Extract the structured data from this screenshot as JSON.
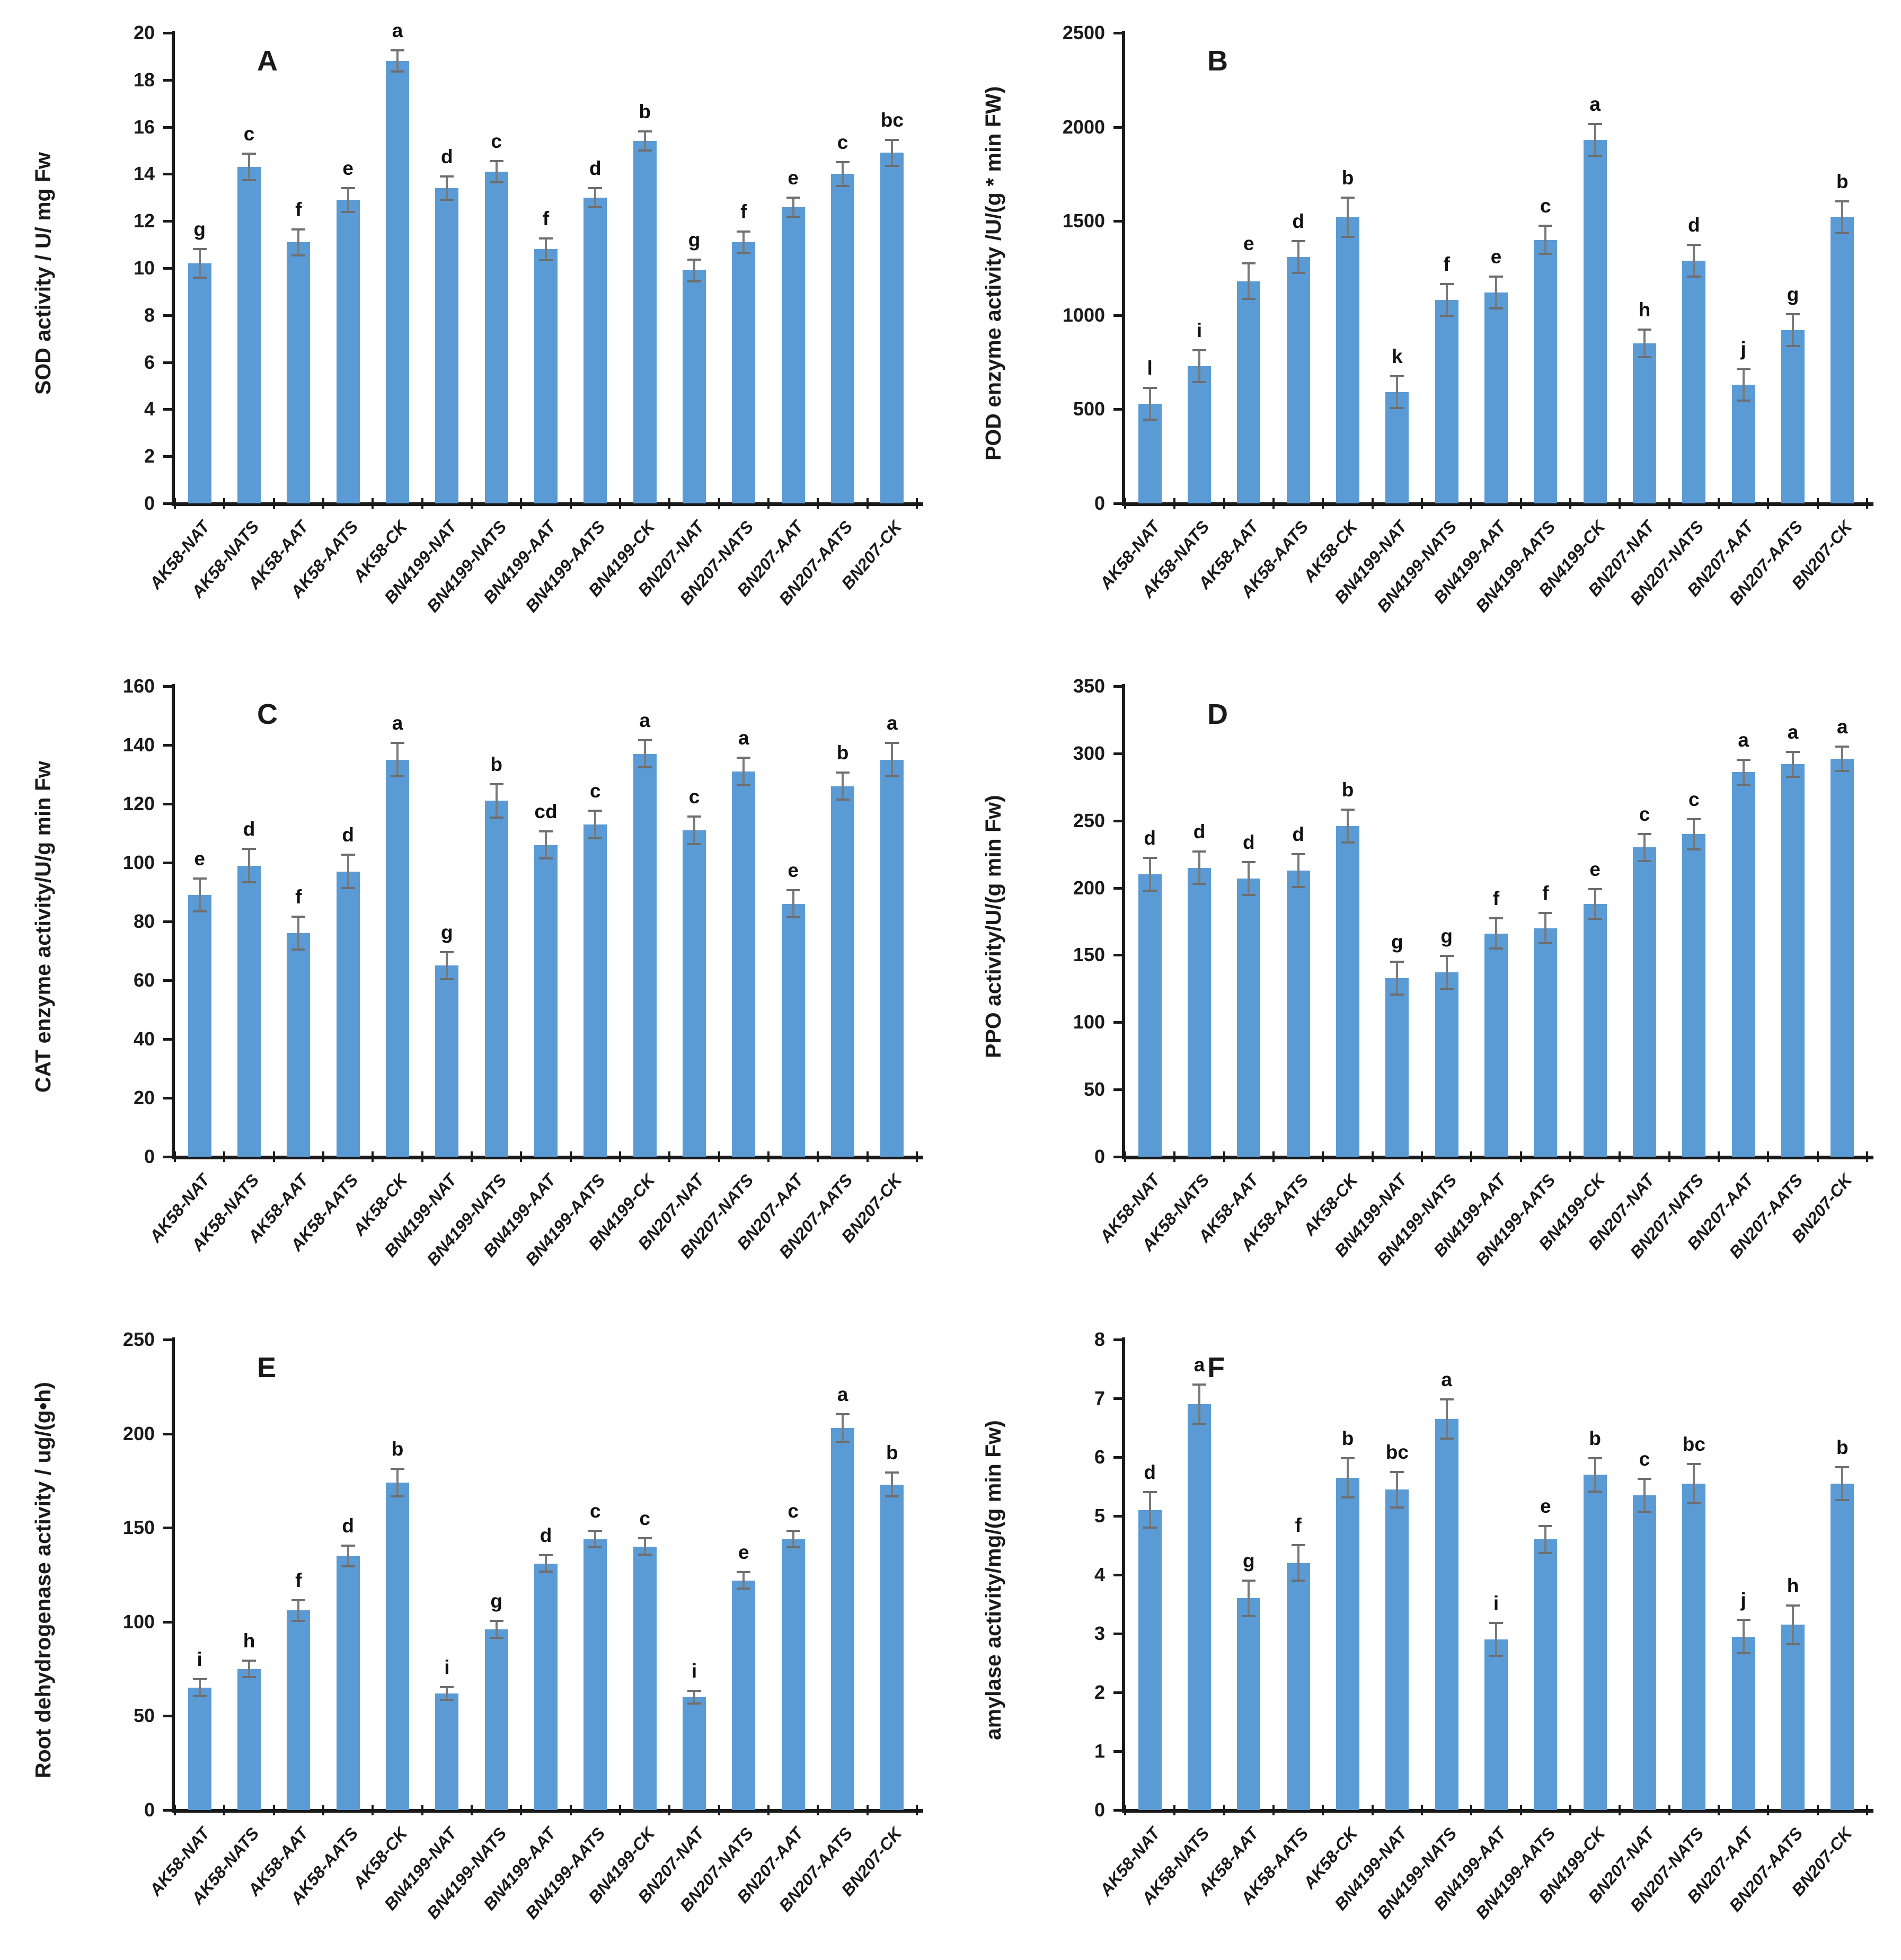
{
  "figure": {
    "background": "#ffffff",
    "bar_color": "#5b9bd5",
    "error_bar_color": "#7a7a7a",
    "text_color": "#1a1a1a"
  },
  "categories": [
    "AK58-NAT",
    "AK58-NATS",
    "AK58-AAT",
    "AK58-AATS",
    "AK58-CK",
    "BN4199-NAT",
    "BN4199-NATS",
    "BN4199-AAT",
    "BN4199-AATS",
    "BN4199-CK",
    "BN207-NAT",
    "BN207-NATS",
    "BN207-AAT",
    "BN207-AATS",
    "BN207-CK"
  ],
  "chart_data": [
    {
      "type": "bar",
      "panel": "A",
      "ylabel": "SOD activity / U/ mg Fw",
      "xlabel": "",
      "ylim": [
        0,
        20
      ],
      "ystep": 2,
      "grid": false,
      "legend": "none",
      "categories": [
        "AK58-NAT",
        "AK58-NATS",
        "AK58-AAT",
        "AK58-AATS",
        "AK58-CK",
        "BN4199-NAT",
        "BN4199-NATS",
        "BN4199-AAT",
        "BN4199-AATS",
        "BN4199-CK",
        "BN207-NAT",
        "BN207-NATS",
        "BN207-AAT",
        "BN207-AATS",
        "BN207-CK"
      ],
      "values": [
        10.2,
        14.3,
        11.1,
        12.9,
        18.8,
        13.4,
        14.1,
        10.8,
        13.0,
        15.4,
        9.9,
        11.1,
        12.6,
        14.0,
        14.9
      ],
      "errors": [
        0.65,
        0.6,
        0.6,
        0.55,
        0.5,
        0.55,
        0.5,
        0.5,
        0.45,
        0.45,
        0.5,
        0.5,
        0.45,
        0.55,
        0.6
      ],
      "sig_letters": [
        "g",
        "c",
        "f",
        "e",
        "a",
        "d",
        "c",
        "f",
        "d",
        "b",
        "g",
        "f",
        "e",
        "c",
        "bc"
      ]
    },
    {
      "type": "bar",
      "panel": "B",
      "ylabel": "POD enzyme activity /U/(g * min FW)",
      "xlabel": "",
      "ylim": [
        0,
        2500
      ],
      "ystep": 500,
      "grid": false,
      "legend": "none",
      "categories": [
        "AK58-NAT",
        "AK58-NATS",
        "AK58-AAT",
        "AK58-AATS",
        "AK58-CK",
        "BN4199-NAT",
        "BN4199-NATS",
        "BN4199-AAT",
        "BN4199-AATS",
        "BN4199-CK",
        "BN207-NAT",
        "BN207-NATS",
        "BN207-AAT",
        "BN207-AATS",
        "BN207-CK"
      ],
      "values": [
        530,
        730,
        1180,
        1310,
        1520,
        590,
        1080,
        1120,
        1400,
        1930,
        850,
        1290,
        630,
        920,
        1520
      ],
      "errors": [
        90,
        90,
        100,
        90,
        110,
        90,
        90,
        90,
        80,
        90,
        80,
        90,
        90,
        90,
        90
      ],
      "sig_letters": [
        "l",
        "i",
        "e",
        "d",
        "b",
        "k",
        "f",
        "e",
        "c",
        "a",
        "h",
        "d",
        "j",
        "g",
        "b"
      ]
    },
    {
      "type": "bar",
      "panel": "C",
      "ylabel": "CAT enzyme activity/U/g min Fw",
      "xlabel": "",
      "ylim": [
        0,
        160
      ],
      "ystep": 20,
      "grid": false,
      "legend": "none",
      "categories": [
        "AK58-NAT",
        "AK58-NATS",
        "AK58-AAT",
        "AK58-AATS",
        "AK58-CK",
        "BN4199-NAT",
        "BN4199-NATS",
        "BN4199-AAT",
        "BN4199-AATS",
        "BN4199-CK",
        "BN207-NAT",
        "BN207-NATS",
        "BN207-AAT",
        "BN207-AATS",
        "BN207-CK"
      ],
      "values": [
        89,
        99,
        76,
        97,
        135,
        65,
        121,
        106,
        113,
        137,
        111,
        131,
        86,
        126,
        135
      ],
      "errors": [
        6,
        6,
        6,
        6,
        6,
        5,
        6,
        5,
        5,
        5,
        5,
        5,
        5,
        5,
        6
      ],
      "sig_letters": [
        "e",
        "d",
        "f",
        "d",
        "a",
        "g",
        "b",
        "cd",
        "c",
        "a",
        "c",
        "a",
        "e",
        "b",
        "a"
      ]
    },
    {
      "type": "bar",
      "panel": "D",
      "ylabel": "PPO activity/U/(g min Fw)",
      "xlabel": "",
      "ylim": [
        0,
        350
      ],
      "ystep": 50,
      "grid": false,
      "legend": "none",
      "categories": [
        "AK58-NAT",
        "AK58-NATS",
        "AK58-AAT",
        "AK58-AATS",
        "AK58-CK",
        "BN4199-NAT",
        "BN4199-NATS",
        "BN4199-AAT",
        "BN4199-AATS",
        "BN4199-CK",
        "BN207-NAT",
        "BN207-NATS",
        "BN207-AAT",
        "BN207-AATS",
        "BN207-CK"
      ],
      "values": [
        210,
        215,
        207,
        213,
        246,
        133,
        137,
        166,
        170,
        188,
        230,
        240,
        286,
        292,
        296
      ],
      "errors": [
        13,
        13,
        13,
        13,
        13,
        13,
        13,
        12,
        12,
        12,
        11,
        12,
        10,
        10,
        10
      ],
      "sig_letters": [
        "d",
        "d",
        "d",
        "d",
        "b",
        "g",
        "g",
        "f",
        "f",
        "e",
        "c",
        "c",
        "a",
        "a",
        "a"
      ]
    },
    {
      "type": "bar",
      "panel": "E",
      "ylabel": "Root dehydrogenase activity / ug/(g•h)",
      "xlabel": "",
      "ylim": [
        0,
        250
      ],
      "ystep": 50,
      "grid": false,
      "legend": "none",
      "categories": [
        "AK58-NAT",
        "AK58-NATS",
        "AK58-AAT",
        "AK58-AATS",
        "AK58-CK",
        "BN4199-NAT",
        "BN4199-NATS",
        "BN4199-AAT",
        "BN4199-AATS",
        "BN4199-CK",
        "BN207-NAT",
        "BN207-NATS",
        "BN207-AAT",
        "BN207-AATS",
        "BN207-CK"
      ],
      "values": [
        65,
        75,
        106,
        135,
        174,
        62,
        96,
        131,
        144,
        140,
        60,
        122,
        144,
        203,
        173
      ],
      "errors": [
        5,
        5,
        6,
        6,
        8,
        4,
        5,
        5,
        5,
        5,
        4,
        5,
        5,
        8,
        7
      ],
      "sig_letters": [
        "i",
        "h",
        "f",
        "d",
        "b",
        "i",
        "g",
        "d",
        "c",
        "c",
        "i",
        "e",
        "c",
        "a",
        "b"
      ]
    },
    {
      "type": "bar",
      "panel": "F",
      "ylabel": "amylase activity/mg/(g min Fw)",
      "xlabel": "",
      "ylim": [
        0,
        8
      ],
      "ystep": 1,
      "grid": false,
      "legend": "none",
      "categories": [
        "AK58-NAT",
        "AK58-NATS",
        "AK58-AAT",
        "AK58-AATS",
        "AK58-CK",
        "BN4199-NAT",
        "BN4199-NATS",
        "BN4199-AAT",
        "BN4199-AATS",
        "BN4199-CK",
        "BN207-NAT",
        "BN207-NATS",
        "BN207-AAT",
        "BN207-AATS",
        "BN207-CK"
      ],
      "values": [
        5.1,
        6.9,
        3.6,
        4.2,
        5.65,
        5.45,
        6.65,
        2.9,
        4.6,
        5.7,
        5.35,
        5.55,
        2.95,
        3.15,
        5.55
      ],
      "errors": [
        0.32,
        0.35,
        0.32,
        0.32,
        0.35,
        0.32,
        0.35,
        0.3,
        0.25,
        0.3,
        0.3,
        0.35,
        0.3,
        0.35,
        0.3
      ],
      "sig_letters": [
        "d",
        "a",
        "g",
        "f",
        "b",
        "bc",
        "a",
        "i",
        "e",
        "b",
        "c",
        "bc",
        "j",
        "h",
        "b"
      ]
    }
  ]
}
